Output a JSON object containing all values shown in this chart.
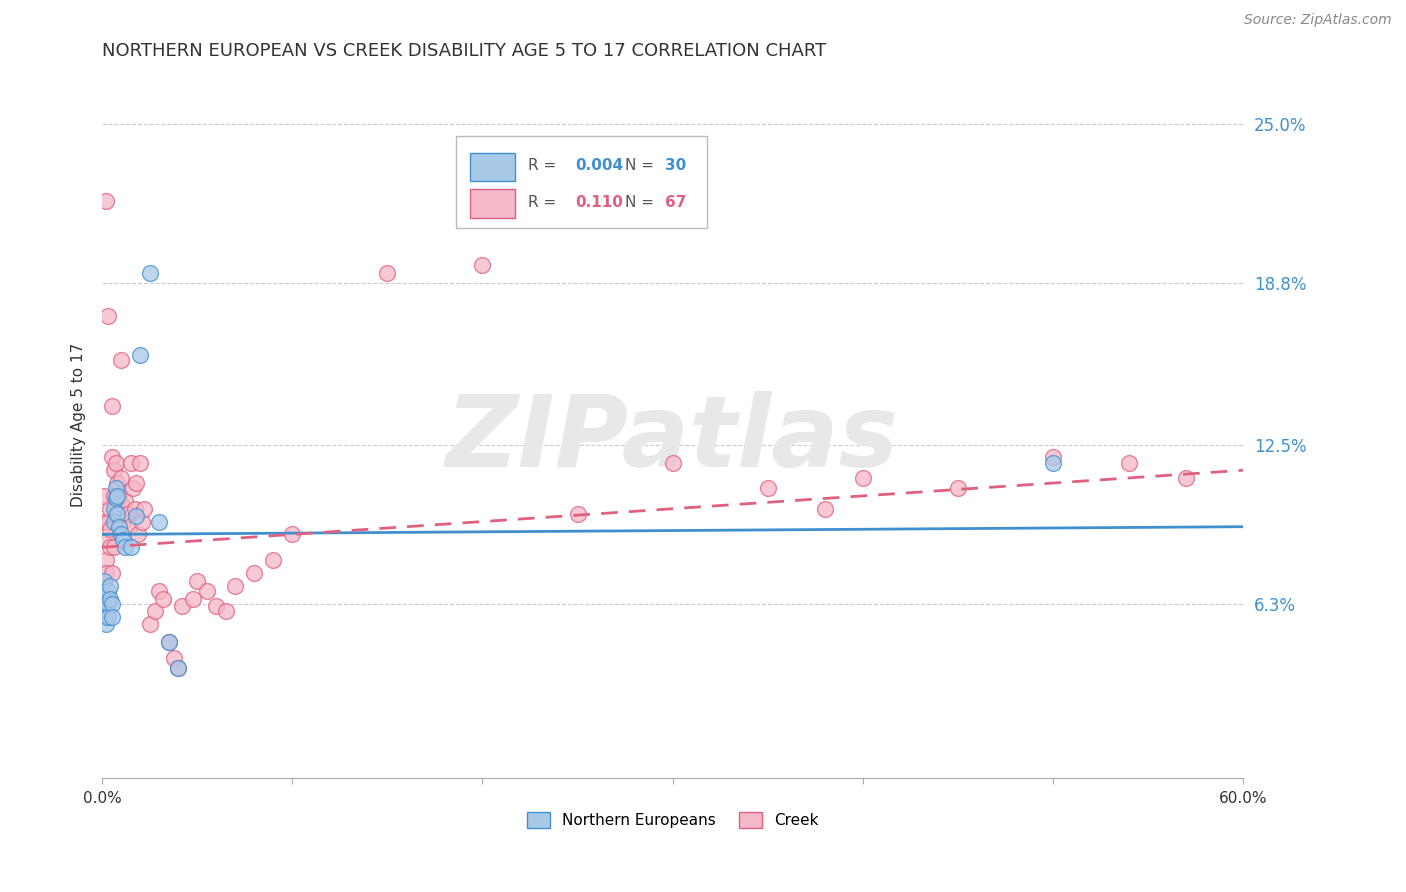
{
  "title": "NORTHERN EUROPEAN VS CREEK DISABILITY AGE 5 TO 17 CORRELATION CHART",
  "source": "Source: ZipAtlas.com",
  "ylabel": "Disability Age 5 to 17",
  "xlim": [
    0,
    0.6
  ],
  "ylim": [
    -0.005,
    0.27
  ],
  "xtick_values": [
    0,
    0.1,
    0.2,
    0.3,
    0.4,
    0.5,
    0.6
  ],
  "ytick_labels": [
    "6.3%",
    "12.5%",
    "18.8%",
    "25.0%"
  ],
  "ytick_values": [
    0.063,
    0.125,
    0.188,
    0.25
  ],
  "watermark": "ZIPatlas",
  "legend1_label": "Northern Europeans",
  "legend2_label": "Creek",
  "R1": "0.004",
  "N1": "30",
  "R2": "0.110",
  "N2": "67",
  "color_ne": "#a8c8e8",
  "color_creek": "#f4b8c8",
  "color_ne_line": "#4090d0",
  "color_creek_line": "#e06080",
  "ne_x": [
    0.001,
    0.001,
    0.002,
    0.002,
    0.002,
    0.003,
    0.003,
    0.003,
    0.004,
    0.004,
    0.005,
    0.005,
    0.006,
    0.006,
    0.007,
    0.007,
    0.008,
    0.008,
    0.009,
    0.01,
    0.011,
    0.012,
    0.015,
    0.018,
    0.02,
    0.025,
    0.03,
    0.035,
    0.04,
    0.5
  ],
  "ne_y": [
    0.072,
    0.065,
    0.06,
    0.058,
    0.055,
    0.068,
    0.063,
    0.058,
    0.07,
    0.065,
    0.063,
    0.058,
    0.1,
    0.095,
    0.108,
    0.104,
    0.105,
    0.098,
    0.093,
    0.09,
    0.088,
    0.085,
    0.085,
    0.097,
    0.16,
    0.192,
    0.095,
    0.048,
    0.038,
    0.118
  ],
  "creek_x": [
    0.001,
    0.001,
    0.002,
    0.002,
    0.003,
    0.003,
    0.003,
    0.004,
    0.004,
    0.004,
    0.005,
    0.005,
    0.005,
    0.006,
    0.006,
    0.006,
    0.007,
    0.007,
    0.008,
    0.008,
    0.009,
    0.009,
    0.01,
    0.01,
    0.011,
    0.012,
    0.013,
    0.014,
    0.015,
    0.016,
    0.017,
    0.018,
    0.019,
    0.02,
    0.021,
    0.022,
    0.025,
    0.028,
    0.03,
    0.032,
    0.035,
    0.038,
    0.04,
    0.042,
    0.048,
    0.05,
    0.055,
    0.06,
    0.065,
    0.07,
    0.08,
    0.09,
    0.1,
    0.15,
    0.2,
    0.25,
    0.3,
    0.35,
    0.38,
    0.4,
    0.45,
    0.5,
    0.54,
    0.57,
    0.002,
    0.003,
    0.01
  ],
  "creek_y": [
    0.105,
    0.095,
    0.08,
    0.075,
    0.095,
    0.088,
    0.065,
    0.1,
    0.092,
    0.085,
    0.14,
    0.12,
    0.075,
    0.115,
    0.105,
    0.085,
    0.118,
    0.098,
    0.11,
    0.1,
    0.105,
    0.093,
    0.112,
    0.102,
    0.095,
    0.103,
    0.098,
    0.093,
    0.118,
    0.108,
    0.1,
    0.11,
    0.09,
    0.118,
    0.095,
    0.1,
    0.055,
    0.06,
    0.068,
    0.065,
    0.048,
    0.042,
    0.038,
    0.062,
    0.065,
    0.072,
    0.068,
    0.062,
    0.06,
    0.07,
    0.075,
    0.08,
    0.09,
    0.192,
    0.195,
    0.098,
    0.118,
    0.108,
    0.1,
    0.112,
    0.108,
    0.12,
    0.118,
    0.112,
    0.22,
    0.175,
    0.158
  ],
  "ne_line_x": [
    0.0,
    0.6
  ],
  "ne_line_y": [
    0.09,
    0.093
  ],
  "creek_line_x": [
    0.0,
    0.6
  ],
  "creek_line_y": [
    0.085,
    0.115
  ]
}
